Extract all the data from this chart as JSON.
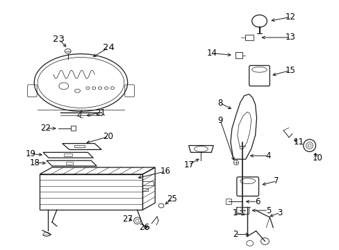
{
  "bg_color": "#ffffff",
  "line_color": "#1a1a1a",
  "label_color": "#000000",
  "figsize": [
    4.89,
    3.6
  ],
  "dpi": 100,
  "label_fontsize": 8.5,
  "arrow_lw": 0.7,
  "part_lw": 0.9
}
